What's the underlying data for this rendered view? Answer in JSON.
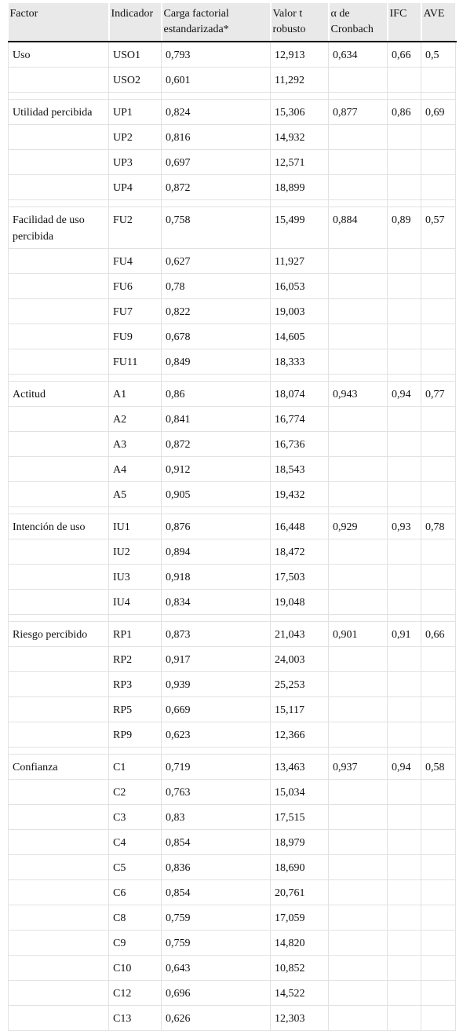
{
  "table": {
    "header": [
      "Factor",
      "Indicador",
      "Carga factorial estandarizada*",
      "Valor t robusto",
      "α de Cronbach",
      "IFC",
      "AVE"
    ],
    "groups": [
      {
        "factor": "Uso",
        "alpha": "0,634",
        "ifc": "0,66",
        "ave": "0,5",
        "rows": [
          [
            "USO1",
            "0,793",
            "12,913"
          ],
          [
            "USO2",
            "0,601",
            "11,292"
          ]
        ]
      },
      {
        "factor": "Utilidad percibida",
        "alpha": "0,877",
        "ifc": "0,86",
        "ave": "0,69",
        "rows": [
          [
            "UP1",
            "0,824",
            "15,306"
          ],
          [
            "UP2",
            "0,816",
            "14,932"
          ],
          [
            "UP3",
            "0,697",
            "12,571"
          ],
          [
            "UP4",
            "0,872",
            "18,899"
          ]
        ]
      },
      {
        "factor": "Facilidad de uso percibida",
        "alpha": "0,884",
        "ifc": "0,89",
        "ave": "0,57",
        "rows": [
          [
            "FU2",
            "0,758",
            "15,499"
          ],
          [
            "FU4",
            "0,627",
            "11,927"
          ],
          [
            "FU6",
            "0,78",
            "16,053"
          ],
          [
            "FU7",
            "0,822",
            "19,003"
          ],
          [
            "FU9",
            "0,678",
            "14,605"
          ],
          [
            "FU11",
            "0,849",
            "18,333"
          ]
        ]
      },
      {
        "factor": "Actitud",
        "alpha": "0,943",
        "ifc": "0,94",
        "ave": "0,77",
        "rows": [
          [
            "A1",
            "0,86",
            "18,074"
          ],
          [
            "A2",
            "0,841",
            "16,774"
          ],
          [
            "A3",
            "0,872",
            "16,736"
          ],
          [
            "A4",
            "0,912",
            "18,543"
          ],
          [
            "A5",
            "0,905",
            "19,432"
          ]
        ]
      },
      {
        "factor": "Intención de uso",
        "alpha": "0,929",
        "ifc": "0,93",
        "ave": "0,78",
        "rows": [
          [
            "IU1",
            "0,876",
            "16,448"
          ],
          [
            "IU2",
            "0,894",
            "18,472"
          ],
          [
            "IU3",
            "0,918",
            "17,503"
          ],
          [
            "IU4",
            "0,834",
            "19,048"
          ]
        ]
      },
      {
        "factor": "Riesgo percibido",
        "alpha": "0,901",
        "ifc": "0,91",
        "ave": "0,66",
        "rows": [
          [
            "RP1",
            "0,873",
            "21,043"
          ],
          [
            "RP2",
            "0,917",
            "24,003"
          ],
          [
            "RP3",
            "0,939",
            "25,253"
          ],
          [
            "RP5",
            "0,669",
            "15,117"
          ],
          [
            "RP9",
            "0,623",
            "12,366"
          ]
        ]
      },
      {
        "factor": "Confianza",
        "alpha": "0,937",
        "ifc": "0,94",
        "ave": "0,58",
        "rows": [
          [
            "C1",
            "0,719",
            "13,463"
          ],
          [
            "C2",
            "0,763",
            "15,034"
          ],
          [
            "C3",
            "0,83",
            "17,515"
          ],
          [
            "C4",
            "0,854",
            "18,979"
          ],
          [
            "C5",
            "0,836",
            "18,690"
          ],
          [
            "C6",
            "0,854",
            "20,761"
          ],
          [
            "C8",
            "0,759",
            "17,059"
          ],
          [
            "C9",
            "0,759",
            "14,820"
          ],
          [
            "C10",
            "0,643",
            "10,852"
          ],
          [
            "C12",
            "0,696",
            "14,522"
          ],
          [
            "C13",
            "0,626",
            "12,303"
          ]
        ]
      }
    ]
  }
}
